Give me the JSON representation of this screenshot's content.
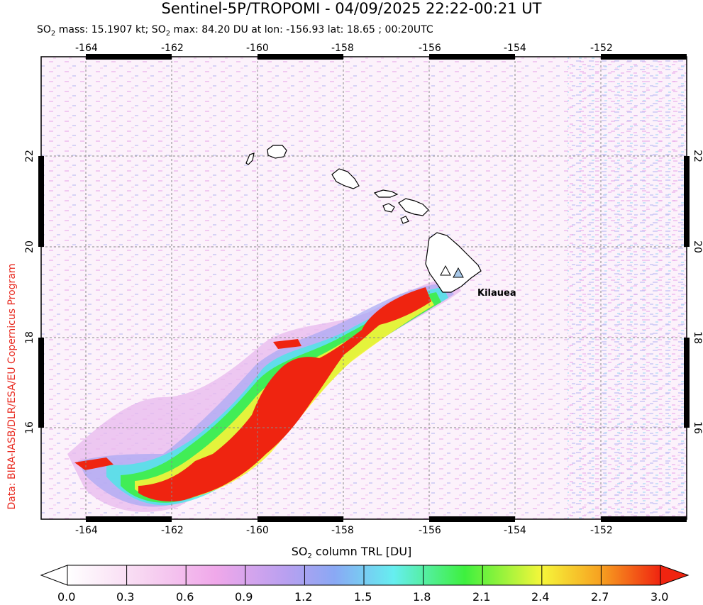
{
  "header": {
    "title": "Sentinel-5P/TROPOMI - 04/09/2025 22:22-00:21 UT",
    "subtitle_prefix": "SO",
    "subtitle_mass_label": " mass: 15.1907 kt; SO",
    "subtitle_rest": " max: 84.20 DU at lon: -156.93 lat: 18.65 ; 00:20UTC"
  },
  "credit": "Data: BIRA-IASB/DLR/ESA/EU Copernicus Program",
  "map": {
    "lon_ticks": [
      "-164",
      "-162",
      "-160",
      "-158",
      "-156",
      "-154",
      "-152"
    ],
    "lat_ticks": [
      "22",
      "20",
      "18",
      "16"
    ],
    "volcano_label": "Kilauea",
    "volcano_marker_color": "#a8c8e8"
  },
  "colorbar": {
    "label_prefix": "SO",
    "label_rest": " column TRL [DU]",
    "ticks": [
      "0.0",
      "0.3",
      "0.6",
      "0.9",
      "1.2",
      "1.5",
      "1.8",
      "2.1",
      "2.4",
      "2.7",
      "3.0"
    ],
    "colors": [
      "#ffffff",
      "#f7c6ef",
      "#e49be6",
      "#a9a4f2",
      "#66e8f2",
      "#3df43d",
      "#f5f53a",
      "#f7a020",
      "#f02410"
    ]
  }
}
